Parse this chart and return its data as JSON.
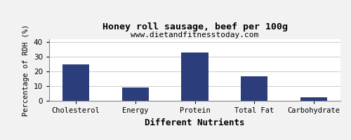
{
  "title": "Honey roll sausage, beef per 100g",
  "subtitle": "www.dietandfitnesstoday.com",
  "xlabel": "Different Nutrients",
  "ylabel": "Percentage of RDH (%)",
  "categories": [
    "Cholesterol",
    "Energy",
    "Protein",
    "Total Fat",
    "Carbohydrate"
  ],
  "values": [
    25,
    9,
    33,
    16.5,
    2.5
  ],
  "bar_color": "#2b3d7a",
  "ylim": [
    0,
    42
  ],
  "yticks": [
    0,
    10,
    20,
    30,
    40
  ],
  "background_color": "#f2f2f2",
  "plot_background": "#ffffff",
  "grid_color": "#cccccc",
  "title_fontsize": 9.5,
  "subtitle_fontsize": 8,
  "xlabel_fontsize": 9,
  "ylabel_fontsize": 7.5,
  "tick_fontsize": 7.5,
  "bar_width": 0.45
}
